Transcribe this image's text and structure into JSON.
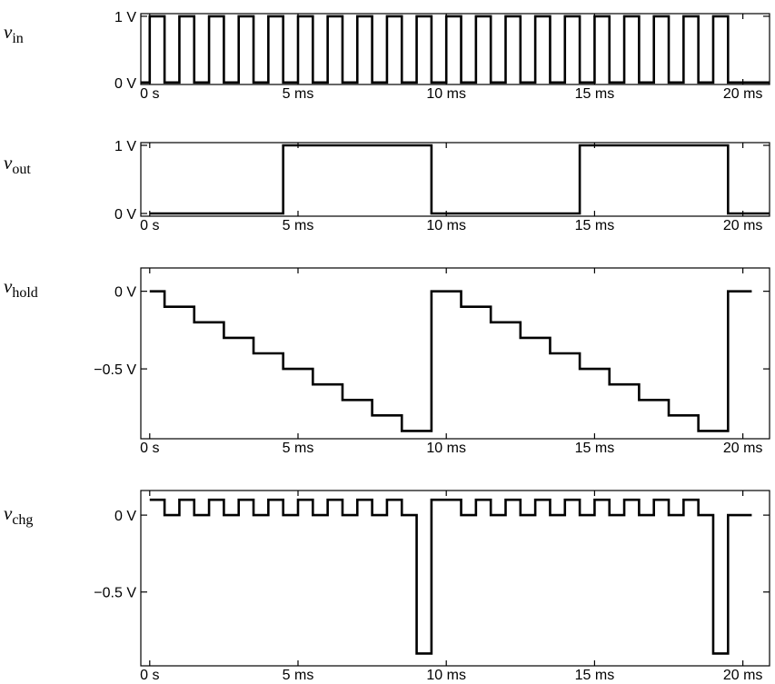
{
  "chart_data": [
    {
      "type": "line",
      "ylabel": "v",
      "ylabel_subscript": "in",
      "color": "#000000",
      "xlim": [
        -0.3,
        20.9
      ],
      "ylim": [
        -0.03,
        1.04
      ],
      "xticks": [
        {
          "value": 0,
          "label": "0 s"
        },
        {
          "value": 5,
          "label": "5 ms"
        },
        {
          "value": 10,
          "label": "10 ms"
        },
        {
          "value": 15,
          "label": "15 ms"
        },
        {
          "value": 20,
          "label": "20 ms"
        }
      ],
      "yticks": [
        {
          "value": 0,
          "label": "0 V"
        },
        {
          "value": 1,
          "label": "1 V"
        }
      ],
      "x": [
        -0.3,
        0,
        0,
        0.5,
        0.5,
        1,
        1,
        1.5,
        1.5,
        2,
        2,
        2.5,
        2.5,
        3,
        3,
        3.5,
        3.5,
        4,
        4,
        4.5,
        4.5,
        5,
        5,
        5.5,
        5.5,
        6,
        6,
        6.5,
        6.5,
        7,
        7,
        7.5,
        7.5,
        8,
        8,
        8.5,
        8.5,
        9,
        9,
        9.5,
        9.5,
        10,
        10,
        10.5,
        10.5,
        11,
        11,
        11.5,
        11.5,
        12,
        12,
        12.5,
        12.5,
        13,
        13,
        13.5,
        13.5,
        14,
        14,
        14.5,
        14.5,
        15,
        15,
        15.5,
        15.5,
        16,
        16,
        16.5,
        16.5,
        17,
        17,
        17.5,
        17.5,
        18,
        18,
        18.5,
        18.5,
        19,
        19,
        19.5,
        19.5,
        20.9
      ],
      "values": [
        0,
        0,
        1,
        1,
        0,
        0,
        1,
        1,
        0,
        0,
        1,
        1,
        0,
        0,
        1,
        1,
        0,
        0,
        1,
        1,
        0,
        0,
        1,
        1,
        0,
        0,
        1,
        1,
        0,
        0,
        1,
        1,
        0,
        0,
        1,
        1,
        0,
        0,
        1,
        1,
        0,
        0,
        1,
        1,
        0,
        0,
        1,
        1,
        0,
        0,
        1,
        1,
        0,
        0,
        1,
        1,
        0,
        0,
        1,
        1,
        0,
        0,
        1,
        1,
        0,
        0,
        1,
        1,
        0,
        0,
        1,
        1,
        0,
        0,
        1,
        1,
        0,
        0,
        1,
        1,
        0,
        0
      ]
    },
    {
      "type": "line",
      "ylabel": "v",
      "ylabel_subscript": "out",
      "color": "#000000",
      "xlim": [
        -0.3,
        20.9
      ],
      "ylim": [
        -0.04,
        1.04
      ],
      "xticks": [
        {
          "value": 0,
          "label": "0 s"
        },
        {
          "value": 5,
          "label": "5 ms"
        },
        {
          "value": 10,
          "label": "10 ms"
        },
        {
          "value": 15,
          "label": "15 ms"
        },
        {
          "value": 20,
          "label": "20 ms"
        }
      ],
      "yticks": [
        {
          "value": 0,
          "label": "0 V"
        },
        {
          "value": 1,
          "label": "1 V"
        }
      ],
      "x": [
        0,
        4.5,
        4.5,
        9.5,
        9.5,
        14.5,
        14.5,
        19.5,
        19.5,
        20.9
      ],
      "values": [
        0,
        0,
        1,
        1,
        0,
        0,
        1,
        1,
        0,
        0
      ]
    },
    {
      "type": "line",
      "ylabel": "v",
      "ylabel_subscript": "hold",
      "color": "#000000",
      "xlim": [
        -0.3,
        20.9
      ],
      "ylim": [
        -0.95,
        0.15
      ],
      "xticks": [
        {
          "value": 0,
          "label": "0 s"
        },
        {
          "value": 5,
          "label": "5 ms"
        },
        {
          "value": 10,
          "label": "10 ms"
        },
        {
          "value": 15,
          "label": "15 ms"
        },
        {
          "value": 20,
          "label": "20 ms"
        }
      ],
      "yticks": [
        {
          "value": -0.5,
          "label": "−0.5 V"
        },
        {
          "value": 0,
          "label": "0 V"
        }
      ],
      "x": [
        0,
        0.5,
        0.5,
        1.5,
        1.5,
        2.5,
        2.5,
        3.5,
        3.5,
        4.5,
        4.5,
        5.5,
        5.5,
        6.5,
        6.5,
        7.5,
        7.5,
        8.5,
        8.5,
        9.5,
        9.5,
        10.5,
        10.5,
        11.5,
        11.5,
        12.5,
        12.5,
        13.5,
        13.5,
        14.5,
        14.5,
        15.5,
        15.5,
        16.5,
        16.5,
        17.5,
        17.5,
        18.5,
        18.5,
        19.5,
        19.5,
        20.3
      ],
      "values": [
        0,
        0,
        -0.1,
        -0.1,
        -0.2,
        -0.2,
        -0.3,
        -0.3,
        -0.4,
        -0.4,
        -0.5,
        -0.5,
        -0.6,
        -0.6,
        -0.7,
        -0.7,
        -0.8,
        -0.8,
        -0.9,
        -0.9,
        0,
        0,
        -0.1,
        -0.1,
        -0.2,
        -0.2,
        -0.3,
        -0.3,
        -0.4,
        -0.4,
        -0.5,
        -0.5,
        -0.6,
        -0.6,
        -0.7,
        -0.7,
        -0.8,
        -0.8,
        -0.9,
        -0.9,
        0,
        0
      ]
    },
    {
      "type": "line",
      "ylabel": "v",
      "ylabel_subscript": "chg",
      "color": "#000000",
      "xlim": [
        -0.3,
        20.9
      ],
      "ylim": [
        -0.98,
        0.16
      ],
      "xticks": [
        {
          "value": 0,
          "label": "0 s"
        },
        {
          "value": 5,
          "label": "5 ms"
        },
        {
          "value": 10,
          "label": "10 ms"
        },
        {
          "value": 15,
          "label": "15 ms"
        },
        {
          "value": 20,
          "label": "20 ms"
        }
      ],
      "yticks": [
        {
          "value": -0.5,
          "label": "−0.5 V"
        },
        {
          "value": 0,
          "label": "0 V"
        }
      ],
      "x": [
        0,
        0.5,
        0.5,
        1,
        1,
        1.5,
        1.5,
        2,
        2,
        2.5,
        2.5,
        3,
        3,
        3.5,
        3.5,
        4,
        4,
        4.5,
        4.5,
        5,
        5,
        5.5,
        5.5,
        6,
        6,
        6.5,
        6.5,
        7,
        7,
        7.5,
        7.5,
        8,
        8,
        8.5,
        8.5,
        9,
        9,
        9.5,
        9.5,
        10.5,
        10.5,
        11,
        11,
        11.5,
        11.5,
        12,
        12,
        12.5,
        12.5,
        13,
        13,
        13.5,
        13.5,
        14,
        14,
        14.5,
        14.5,
        15,
        15,
        15.5,
        15.5,
        16,
        16,
        16.5,
        16.5,
        17,
        17,
        17.5,
        17.5,
        18,
        18,
        18.5,
        18.5,
        19,
        19,
        19.5,
        19.5,
        20.3
      ],
      "values": [
        0.1,
        0.1,
        0,
        0,
        0.1,
        0.1,
        0,
        0,
        0.1,
        0.1,
        0,
        0,
        0.1,
        0.1,
        0,
        0,
        0.1,
        0.1,
        0,
        0,
        0.1,
        0.1,
        0,
        0,
        0.1,
        0.1,
        0,
        0,
        0.1,
        0.1,
        0,
        0,
        0.1,
        0.1,
        0,
        0,
        -0.9,
        -0.9,
        0.1,
        0.1,
        0,
        0,
        0.1,
        0.1,
        0,
        0,
        0.1,
        0.1,
        0,
        0,
        0.1,
        0.1,
        0,
        0,
        0.1,
        0.1,
        0,
        0,
        0.1,
        0.1,
        0,
        0,
        0.1,
        0.1,
        0,
        0,
        0.1,
        0.1,
        0,
        0,
        0.1,
        0.1,
        0,
        0,
        -0.9,
        -0.9,
        0,
        0
      ]
    }
  ]
}
